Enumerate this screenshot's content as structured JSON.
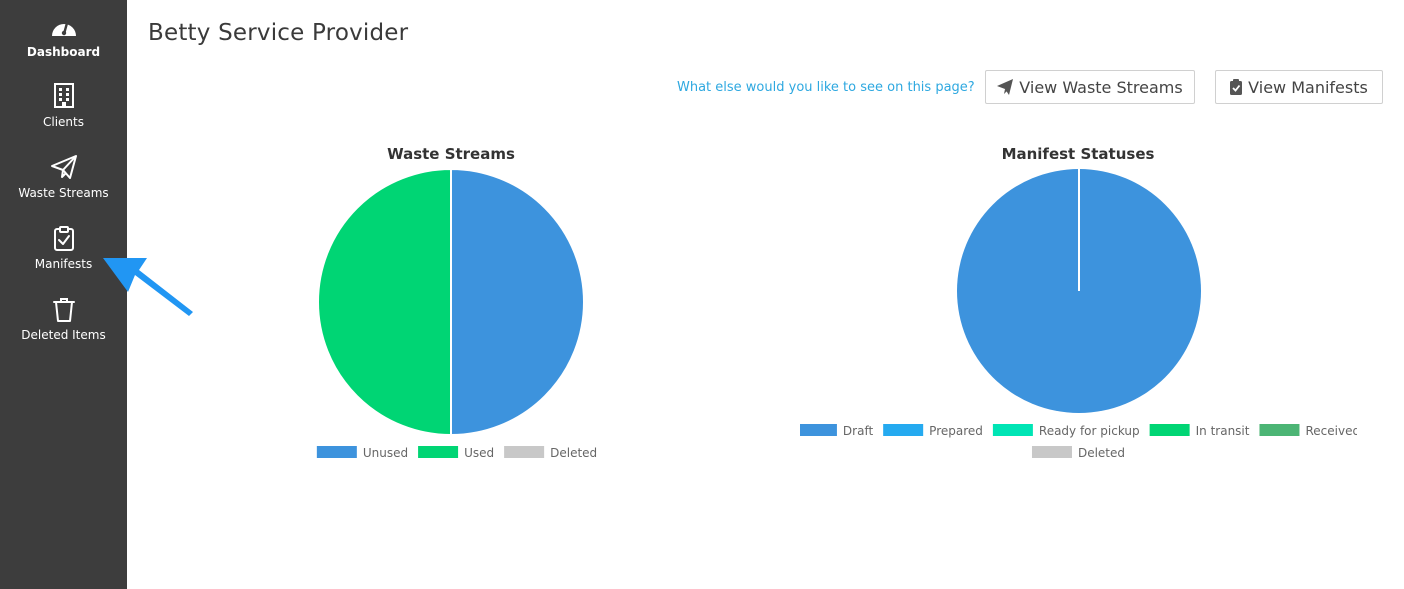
{
  "sidebar": {
    "items": [
      {
        "label": "Dashboard",
        "icon": "dashboard-icon",
        "active": true
      },
      {
        "label": "Clients",
        "icon": "building-icon",
        "active": false
      },
      {
        "label": "Waste Streams",
        "icon": "paper-plane-icon",
        "active": false
      },
      {
        "label": "Manifests",
        "icon": "clipboard-check-icon",
        "active": false
      },
      {
        "label": "Deleted Items",
        "icon": "trash-icon",
        "active": false
      }
    ]
  },
  "header": {
    "title": "Betty Service Provider",
    "feedback_link": "What else would you like to see on this page?",
    "view_waste_streams_label": "View Waste Streams",
    "view_manifests_label": "View Manifests"
  },
  "colors": {
    "sidebar_bg": "#3d3d3d",
    "link": "#2ea8e0",
    "annotation_arrow": "#2196f3"
  },
  "chart_data": [
    {
      "type": "pie",
      "title": "Waste Streams",
      "labels": [
        "Unused",
        "Used",
        "Deleted"
      ],
      "values": [
        1,
        1,
        0
      ],
      "colors": [
        "#3d93dd",
        "#00d574",
        "#c8c8c8"
      ],
      "legend": "bottom"
    },
    {
      "type": "pie",
      "title": "Manifest Statuses",
      "labels": [
        "Draft",
        "Prepared",
        "Ready for pickup",
        "In transit",
        "Received",
        "Deleted"
      ],
      "values": [
        1,
        0,
        0,
        0,
        0,
        0
      ],
      "colors": [
        "#3d93dd",
        "#25aaf0",
        "#00e5b5",
        "#00d574",
        "#4cb575",
        "#c8c8c8"
      ],
      "legend": "bottom"
    }
  ]
}
